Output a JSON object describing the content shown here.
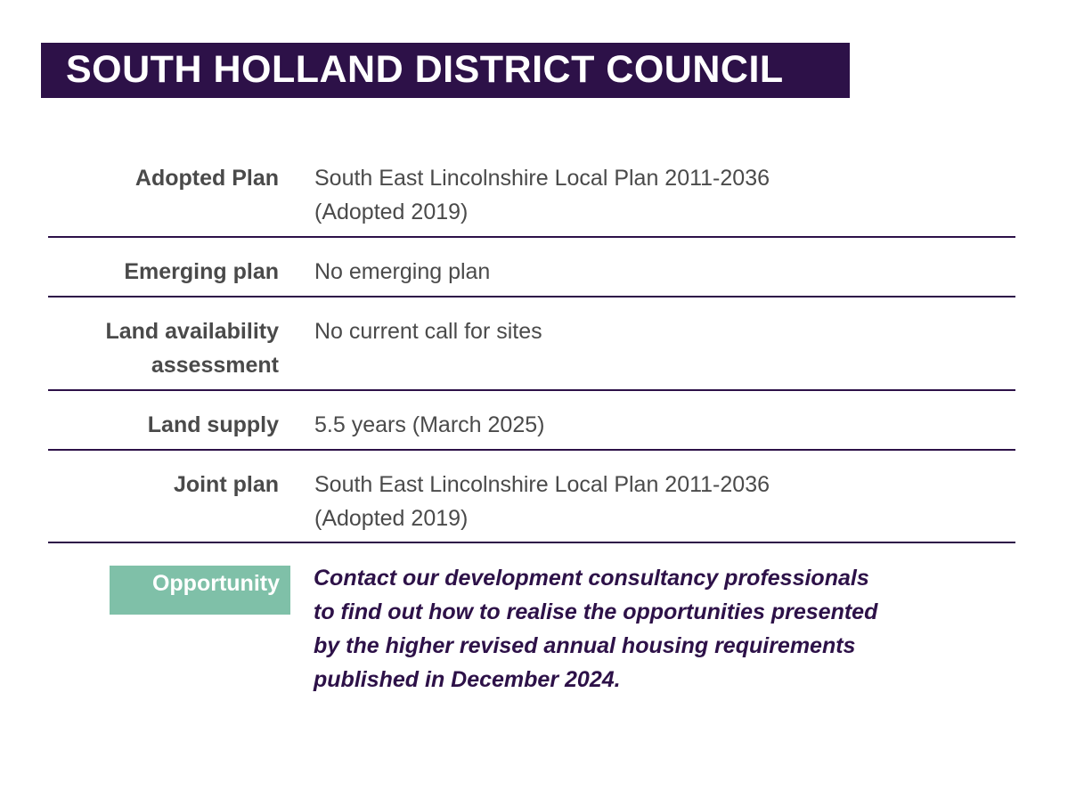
{
  "header": {
    "title": "SOUTH HOLLAND DISTRICT COUNCIL"
  },
  "rows": [
    {
      "label": [
        "Adopted Plan"
      ],
      "value": [
        "South East Lincolnshire Local Plan 2011-2036",
        "(Adopted 2019)"
      ]
    },
    {
      "label": [
        "Emerging plan"
      ],
      "value": [
        "No emerging plan"
      ]
    },
    {
      "label": [
        "Land availability",
        "assessment"
      ],
      "value": [
        "No current call for sites"
      ]
    },
    {
      "label": [
        "Land supply"
      ],
      "value": [
        "5.5 years (March 2025)"
      ]
    },
    {
      "label": [
        "Joint plan"
      ],
      "value": [
        "South East Lincolnshire Local Plan 2011-2036",
        "(Adopted 2019)"
      ]
    }
  ],
  "opportunity": {
    "label": "Opportunity",
    "text": [
      "Contact our development consultancy professionals",
      "to find out how to realise the opportunities presented",
      "by the higher revised annual housing requirements",
      "published in December 2024."
    ]
  },
  "colors": {
    "brand_purple": "#2d1148",
    "accent_green": "#7fc0a8",
    "text_grey": "#4a4a4a"
  }
}
